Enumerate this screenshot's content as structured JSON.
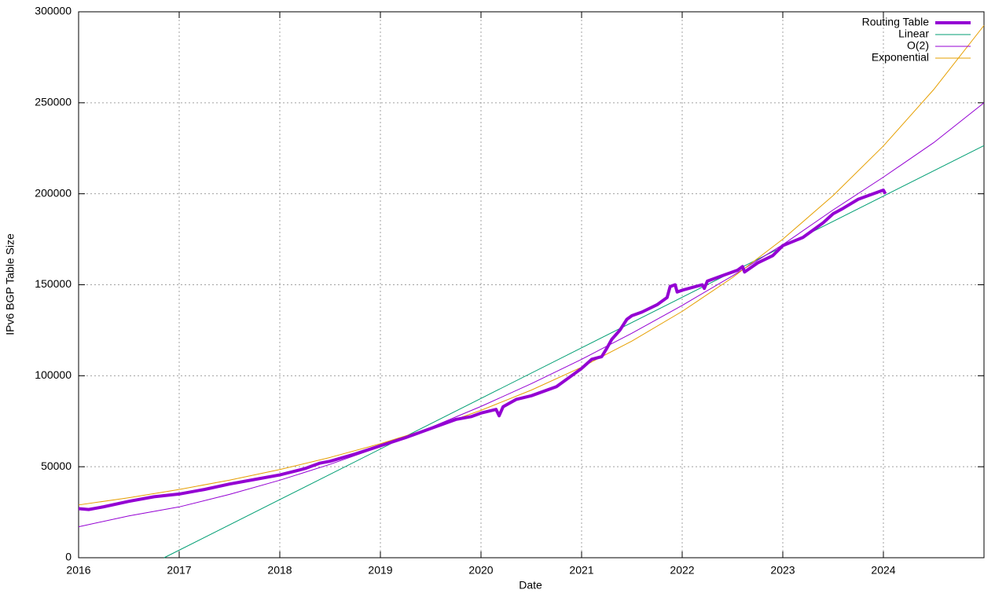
{
  "chart_data": {
    "type": "line",
    "x_label": "Date",
    "y_label": "IPv6 BGP Table Size",
    "xlim": [
      2016,
      2025
    ],
    "xticks": [
      2016,
      2017,
      2018,
      2019,
      2020,
      2021,
      2022,
      2023,
      2024
    ],
    "ylim": [
      0,
      300000
    ],
    "yticks": [
      0,
      50000,
      100000,
      150000,
      200000,
      250000,
      300000
    ],
    "grid": true,
    "legend": "top-right",
    "series": [
      {
        "name": "Routing Table",
        "color": "#9400d3",
        "width": 4,
        "x": [
          2016.0,
          2016.1,
          2016.25,
          2016.5,
          2016.75,
          2017.0,
          2017.25,
          2017.5,
          2017.75,
          2018.0,
          2018.25,
          2018.4,
          2018.5,
          2018.75,
          2019.0,
          2019.25,
          2019.5,
          2019.75,
          2019.9,
          2020.0,
          2020.15,
          2020.18,
          2020.22,
          2020.35,
          2020.5,
          2020.75,
          2021.0,
          2021.1,
          2021.2,
          2021.25,
          2021.3,
          2021.38,
          2021.45,
          2021.5,
          2021.6,
          2021.75,
          2021.85,
          2021.88,
          2021.93,
          2021.95,
          2022.0,
          2022.2,
          2022.22,
          2022.25,
          2022.4,
          2022.55,
          2022.6,
          2022.62,
          2022.75,
          2022.9,
          2023.0,
          2023.2,
          2023.4,
          2023.5,
          2023.6,
          2023.75,
          2023.9,
          2024.0,
          2024.02
        ],
        "values": [
          27000,
          26500,
          28000,
          31000,
          33500,
          35000,
          37500,
          40500,
          43000,
          45500,
          49000,
          52000,
          53000,
          57000,
          61500,
          66000,
          71000,
          76000,
          77500,
          79500,
          81500,
          78000,
          83000,
          87000,
          89000,
          94000,
          104000,
          109000,
          110500,
          115000,
          120000,
          125000,
          131000,
          133000,
          135000,
          139000,
          143000,
          149000,
          150000,
          146000,
          147000,
          150000,
          148000,
          152000,
          155000,
          158000,
          160000,
          157000,
          162000,
          166000,
          171500,
          176000,
          184000,
          189000,
          192000,
          197000,
          200000,
          202000,
          200000
        ]
      },
      {
        "name": "Linear",
        "color": "#009e73",
        "width": 1,
        "x": [
          2016.85,
          2025
        ],
        "values": [
          0,
          226500
        ]
      },
      {
        "name": "O(2)",
        "color": "#9400d3",
        "width": 1,
        "x": [
          2016,
          2016.5,
          2017,
          2017.5,
          2018,
          2018.5,
          2019,
          2019.5,
          2020,
          2020.5,
          2021,
          2021.5,
          2022,
          2022.5,
          2023,
          2023.5,
          2024,
          2024.5,
          2025
        ],
        "values": [
          17000,
          22996,
          27927,
          34793,
          42594,
          51330,
          61001,
          71608,
          83148,
          95624,
          109035,
          123380,
          138662,
          154876,
          172029,
          191113,
          209136,
          228090,
          249983
        ]
      },
      {
        "name": "Exponential",
        "color": "#e69f00",
        "width": 1,
        "x": [
          2016,
          2016.5,
          2017,
          2017.5,
          2018,
          2018.5,
          2019,
          2019.5,
          2020,
          2020.5,
          2021,
          2021.5,
          2022,
          2022.5,
          2023,
          2023.5,
          2024,
          2024.5,
          2025
        ],
        "values": [
          29000,
          32970,
          37490,
          42630,
          48470,
          55110,
          62660,
          71240,
          81000,
          92100,
          104720,
          119070,
          135380,
          153930,
          175020,
          199000,
          226260,
          257260,
          292500
        ]
      }
    ]
  }
}
